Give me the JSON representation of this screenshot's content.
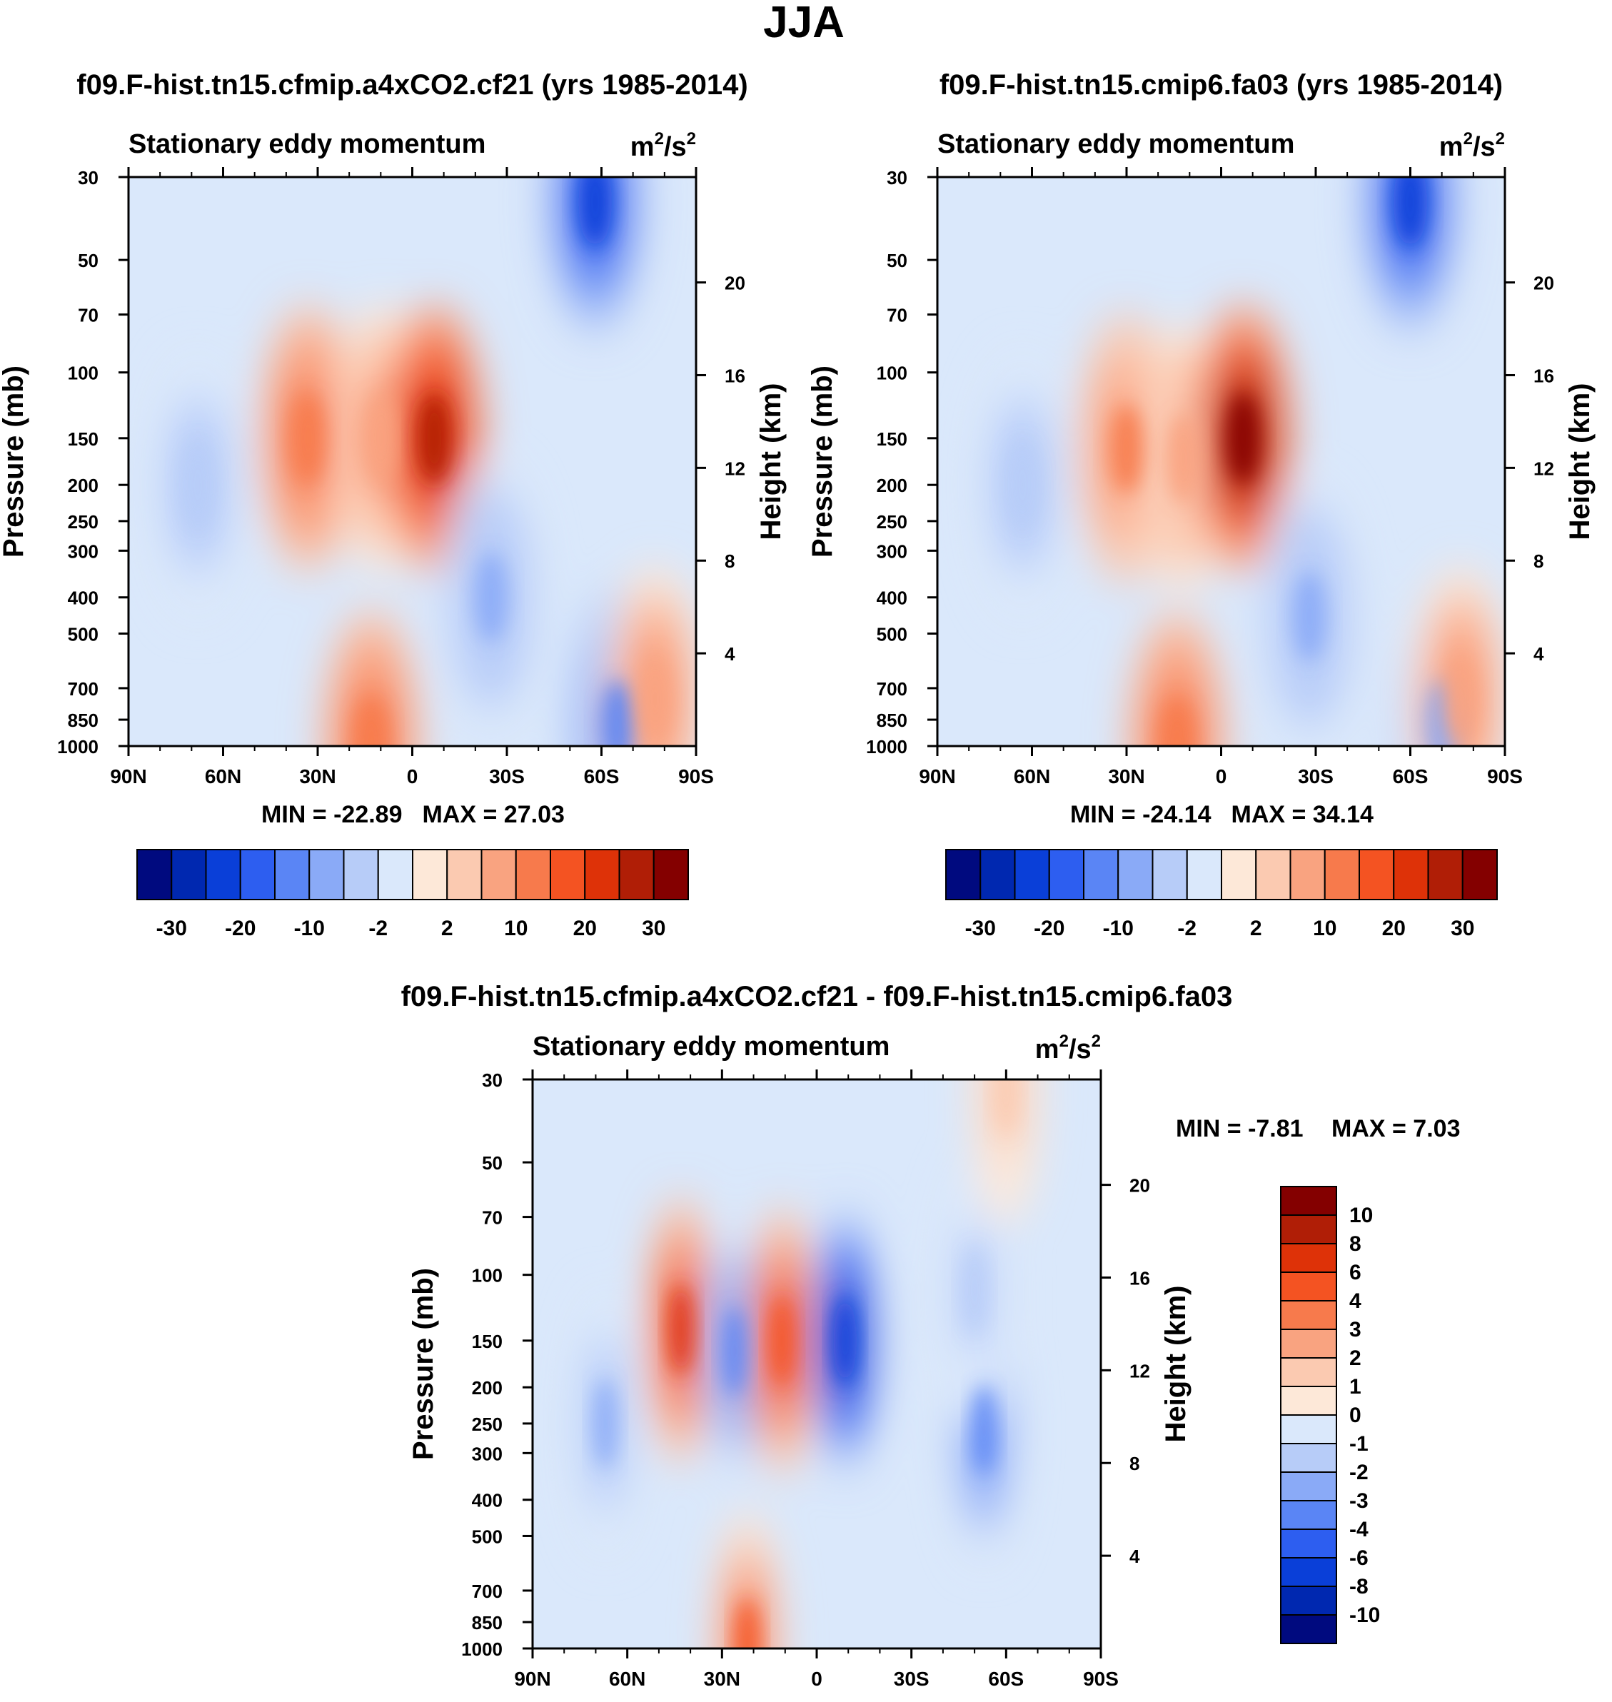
{
  "figure": {
    "title": "JJA"
  },
  "colors": {
    "panel_scale": [
      "#000a7f",
      "#0028b0",
      "#0a3fd8",
      "#2d5ef0",
      "#5a85f5",
      "#8aaaf7",
      "#b7ccf8",
      "#dae8fb",
      "#fde8d8",
      "#fbcab1",
      "#f9a380",
      "#f77a4c",
      "#f45322",
      "#de3208",
      "#b01e06",
      "#840000"
    ],
    "diff_scale": [
      "#840000",
      "#b01e06",
      "#de3208",
      "#f45322",
      "#f77a4c",
      "#f9a380",
      "#fbcab1",
      "#fde8d8",
      "#dae8fb",
      "#b7ccf8",
      "#8aaaf7",
      "#5a85f5",
      "#2d5ef0",
      "#0a3fd8",
      "#0028b0",
      "#000a7f"
    ]
  },
  "chart_data": [
    {
      "type": "heatmap",
      "panel_id": "left",
      "title": "f09.F-hist.tn15.cfmip.a4xCO2.cf21 (yrs 1985-2014)",
      "subtitle": "Stationary eddy momentum",
      "units": "m",
      "units_sup1": "2",
      "units_mid": "/s",
      "units_sup2": "2",
      "xlabel": "",
      "ylabel": "Pressure (mb)",
      "y2label": "Height (km)",
      "x_ticks": [
        "90N",
        "60N",
        "30N",
        "0",
        "30S",
        "60S",
        "90S"
      ],
      "x_range": [
        90,
        -90
      ],
      "y_ticks": [
        30,
        50,
        70,
        100,
        150,
        200,
        250,
        300,
        400,
        500,
        700,
        850,
        1000
      ],
      "y_range": [
        30,
        1000
      ],
      "y2_ticks": [
        20,
        16,
        12,
        8,
        4
      ],
      "min_label": "MIN = -22.89",
      "max_label": "MAX =  27.03",
      "min": -22.89,
      "max": 27.03,
      "contour_levels": [
        -30,
        -25,
        -20,
        -15,
        -10,
        -5,
        -2,
        0,
        2,
        5,
        10,
        15,
        20,
        25,
        30
      ],
      "colorbar_labels": [
        "-30",
        "-20",
        "-10",
        "-2",
        "2",
        "10",
        "20",
        "30"
      ],
      "features": [
        {
          "lat": 33,
          "p": 150,
          "value": 14
        },
        {
          "lat": 10,
          "p": 150,
          "value": 8
        },
        {
          "lat": -7,
          "p": 150,
          "value": 27
        },
        {
          "lat": -58,
          "p": 35,
          "value": -22
        },
        {
          "lat": -25,
          "p": 400,
          "value": -5
        },
        {
          "lat": 68,
          "p": 200,
          "value": -4
        },
        {
          "lat": 13,
          "p": 980,
          "value": 15
        },
        {
          "lat": -65,
          "p": 880,
          "value": -10
        },
        {
          "lat": -77,
          "p": 750,
          "value": 10
        }
      ]
    },
    {
      "type": "heatmap",
      "panel_id": "right",
      "title": "f09.F-hist.tn15.cmip6.fa03 (yrs 1985-2014)",
      "subtitle": "Stationary eddy momentum",
      "units": "m",
      "units_sup1": "2",
      "units_mid": "/s",
      "units_sup2": "2",
      "xlabel": "",
      "ylabel": "Pressure (mb)",
      "y2label": "Height (km)",
      "x_ticks": [
        "90N",
        "60N",
        "30N",
        "0",
        "30S",
        "60S",
        "90S"
      ],
      "x_range": [
        90,
        -90
      ],
      "y_ticks": [
        30,
        50,
        70,
        100,
        150,
        200,
        250,
        300,
        400,
        500,
        700,
        850,
        1000
      ],
      "y_range": [
        30,
        1000
      ],
      "y2_ticks": [
        20,
        16,
        12,
        8,
        4
      ],
      "min_label": "MIN = -24.14",
      "max_label": "MAX =  34.14",
      "min": -24.14,
      "max": 34.14,
      "contour_levels": [
        -30,
        -25,
        -20,
        -15,
        -10,
        -5,
        -2,
        0,
        2,
        5,
        10,
        15,
        20,
        25,
        30
      ],
      "colorbar_labels": [
        "-30",
        "-20",
        "-10",
        "-2",
        "2",
        "10",
        "20",
        "30"
      ],
      "features": [
        {
          "lat": 30,
          "p": 160,
          "value": 11
        },
        {
          "lat": 12,
          "p": 170,
          "value": 6
        },
        {
          "lat": -7,
          "p": 150,
          "value": 34
        },
        {
          "lat": -60,
          "p": 35,
          "value": -22
        },
        {
          "lat": -28,
          "p": 450,
          "value": -5
        },
        {
          "lat": 63,
          "p": 200,
          "value": -4
        },
        {
          "lat": 14,
          "p": 985,
          "value": 14
        },
        {
          "lat": -70,
          "p": 880,
          "value": -8
        },
        {
          "lat": -76,
          "p": 750,
          "value": 9
        }
      ]
    },
    {
      "type": "heatmap",
      "panel_id": "diff",
      "title": "f09.F-hist.tn15.cfmip.a4xCO2.cf21 - f09.F-hist.tn15.cmip6.fa03",
      "subtitle": "Stationary eddy momentum",
      "units": "m",
      "units_sup1": "2",
      "units_mid": "/s",
      "units_sup2": "2",
      "xlabel": "",
      "ylabel": "Pressure (mb)",
      "y2label": "Height (km)",
      "x_ticks": [
        "90N",
        "60N",
        "30N",
        "0",
        "30S",
        "60S",
        "90S"
      ],
      "x_range": [
        90,
        -90
      ],
      "y_ticks": [
        30,
        50,
        70,
        100,
        150,
        200,
        250,
        300,
        400,
        500,
        700,
        850,
        1000
      ],
      "y_range": [
        30,
        1000
      ],
      "y2_ticks": [
        20,
        16,
        12,
        8,
        4
      ],
      "min_label": "MIN =  -7.81",
      "max_label": "MAX =   7.03",
      "min": -7.81,
      "max": 7.03,
      "contour_levels": [
        -10,
        -8,
        -6,
        -4,
        -3,
        -2,
        -1,
        0,
        1,
        2,
        3,
        4,
        6,
        8,
        10
      ],
      "colorbar_labels": [
        "10",
        "8",
        "6",
        "4",
        "3",
        "2",
        "1",
        "0",
        "-1",
        "-2",
        "-3",
        "-4",
        "-6",
        "-8",
        "-10"
      ],
      "features": [
        {
          "lat": 43,
          "p": 140,
          "value": 6.5
        },
        {
          "lat": 26,
          "p": 160,
          "value": -3.5
        },
        {
          "lat": 11,
          "p": 150,
          "value": 5.5
        },
        {
          "lat": -9,
          "p": 150,
          "value": -7.8
        },
        {
          "lat": -53,
          "p": 260,
          "value": -3.5
        },
        {
          "lat": -50,
          "p": 110,
          "value": -1.5
        },
        {
          "lat": 67,
          "p": 250,
          "value": -2
        },
        {
          "lat": 22,
          "p": 970,
          "value": 5
        },
        {
          "lat": -60,
          "p": 32,
          "value": 1.5
        }
      ]
    }
  ]
}
